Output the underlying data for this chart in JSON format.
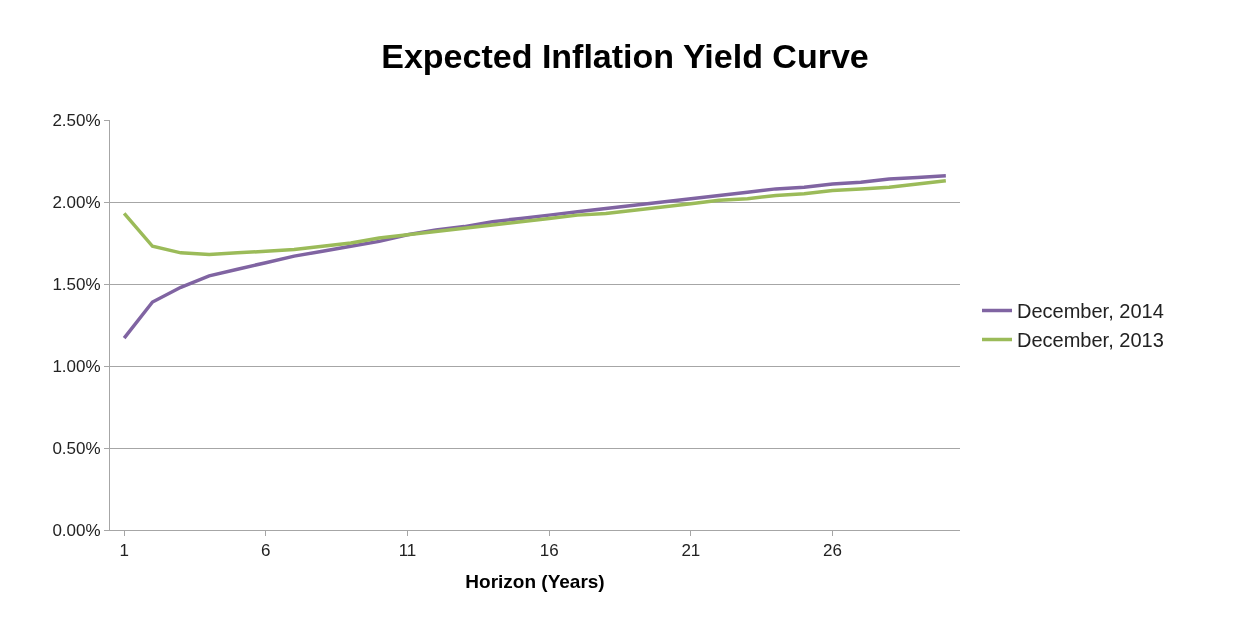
{
  "chart_data": {
    "type": "line",
    "title": "Expected Inflation Yield Curve",
    "xlabel": "Horizon (Years)",
    "x": [
      1,
      2,
      3,
      4,
      5,
      6,
      7,
      8,
      9,
      10,
      11,
      12,
      13,
      14,
      15,
      16,
      17,
      18,
      19,
      20,
      21,
      22,
      23,
      24,
      25,
      26,
      27,
      28,
      29,
      30
    ],
    "xlim": [
      0.5,
      30.5
    ],
    "xticks": [
      1,
      6,
      11,
      16,
      21,
      26
    ],
    "ylim": [
      0,
      2.5
    ],
    "yticks": [
      {
        "value": 0,
        "label": "0.00%"
      },
      {
        "value": 0.5,
        "label": "0.50%"
      },
      {
        "value": 1,
        "label": "1.00%"
      },
      {
        "value": 1.5,
        "label": "1.50%"
      },
      {
        "value": 2,
        "label": "2.00%"
      },
      {
        "value": 2.5,
        "label": "2.50%"
      }
    ],
    "grid": "y",
    "legend": "right",
    "marker": "none",
    "line_style": "solid",
    "series": [
      {
        "name": "December, 2014",
        "color": "#8064a2",
        "values": [
          1.17,
          1.39,
          1.48,
          1.55,
          1.59,
          1.63,
          1.67,
          1.7,
          1.73,
          1.76,
          1.8,
          1.83,
          1.85,
          1.88,
          1.9,
          1.92,
          1.94,
          1.96,
          1.98,
          2.0,
          2.02,
          2.04,
          2.06,
          2.08,
          2.09,
          2.11,
          2.12,
          2.14,
          2.15,
          2.16
        ]
      },
      {
        "name": "December, 2013",
        "color": "#9bbb59",
        "values": [
          1.93,
          1.73,
          1.69,
          1.68,
          1.69,
          1.7,
          1.71,
          1.73,
          1.75,
          1.78,
          1.8,
          1.82,
          1.84,
          1.86,
          1.88,
          1.9,
          1.92,
          1.93,
          1.95,
          1.97,
          1.99,
          2.01,
          2.02,
          2.04,
          2.05,
          2.07,
          2.08,
          2.09,
          2.11,
          2.13
        ]
      }
    ]
  }
}
